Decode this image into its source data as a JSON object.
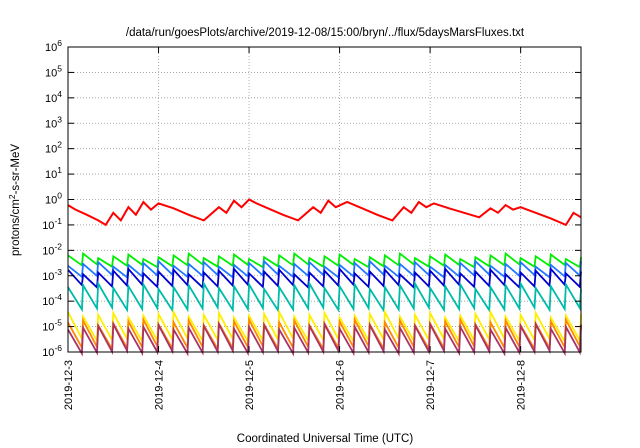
{
  "chart_data": {
    "type": "line",
    "title": "/data/run/goesPlots/archive/2019-12-08/15:00/bryn/../flux/5daysMarsFluxes.txt",
    "xlabel": "Coordinated Universal Time (UTC)",
    "ylabel": {
      "base": "protons/cm",
      "sup": "2",
      "rest": "-s-sr-MeV"
    },
    "x_ticks": [
      "2019-12-3",
      "2019-12-4",
      "2019-12-5",
      "2019-12-6",
      "2019-12-7",
      "2019-12-8"
    ],
    "xlim": [
      "2019-12-3",
      "2019-12-8 16:00"
    ],
    "yscale": "log",
    "ylim": [
      1e-06,
      1000000.0
    ],
    "y_ticks": [
      {
        "value": 1e-06,
        "base": "10",
        "exp": "-6"
      },
      {
        "value": 1e-05,
        "base": "10",
        "exp": "-5"
      },
      {
        "value": 0.0001,
        "base": "10",
        "exp": "-4"
      },
      {
        "value": 0.001,
        "base": "10",
        "exp": "-3"
      },
      {
        "value": 0.01,
        "base": "10",
        "exp": "-2"
      },
      {
        "value": 0.1,
        "base": "10",
        "exp": "-1"
      },
      {
        "value": 1,
        "base": "10",
        "exp": "0"
      },
      {
        "value": 10,
        "base": "10",
        "exp": "1"
      },
      {
        "value": 100,
        "base": "10",
        "exp": "2"
      },
      {
        "value": 1000,
        "base": "10",
        "exp": "3"
      },
      {
        "value": 10000,
        "base": "10",
        "exp": "4"
      },
      {
        "value": 100000,
        "base": "10",
        "exp": "5"
      },
      {
        "value": 1000000,
        "base": "10",
        "exp": "6"
      }
    ],
    "grid": true,
    "legend": "none",
    "series": [
      {
        "color": "#ff0000",
        "x": [
          "2019-12-3 00:00",
          "2019-12-3 02:00",
          "2019-12-3 05:00",
          "2019-12-3 08:00",
          "2019-12-3 10:00",
          "2019-12-3 12:00",
          "2019-12-3 14:00",
          "2019-12-3 16:00",
          "2019-12-3 18:00",
          "2019-12-3 20:00",
          "2019-12-3 22:00",
          "2019-12-4 00:00",
          "2019-12-4 04:00",
          "2019-12-4 08:00",
          "2019-12-4 12:00",
          "2019-12-4 16:00",
          "2019-12-4 18:00",
          "2019-12-4 20:00",
          "2019-12-4 22:00",
          "2019-12-5 00:00",
          "2019-12-5 02:00",
          "2019-12-5 05:00",
          "2019-12-5 09:00",
          "2019-12-5 13:00",
          "2019-12-5 17:00",
          "2019-12-5 19:00",
          "2019-12-5 21:00",
          "2019-12-5 23:00",
          "2019-12-6 02:00",
          "2019-12-6 06:00",
          "2019-12-6 10:00",
          "2019-12-6 14:00",
          "2019-12-6 17:00",
          "2019-12-6 19:00",
          "2019-12-6 21:00",
          "2019-12-6 23:00",
          "2019-12-7 01:00",
          "2019-12-7 05:00",
          "2019-12-7 09:00",
          "2019-12-7 13:00",
          "2019-12-7 16:00",
          "2019-12-7 18:00",
          "2019-12-7 20:00",
          "2019-12-7 22:00",
          "2019-12-8 00:00",
          "2019-12-8 04:00",
          "2019-12-8 08:00",
          "2019-12-8 12:00",
          "2019-12-8 14:00",
          "2019-12-8 16:00"
        ],
        "y": [
          0.6,
          0.4,
          0.25,
          0.15,
          0.1,
          0.3,
          0.15,
          0.5,
          0.25,
          0.8,
          0.4,
          0.7,
          0.45,
          0.25,
          0.15,
          0.5,
          0.3,
          0.9,
          0.5,
          1.0,
          0.7,
          0.45,
          0.25,
          0.15,
          0.5,
          0.3,
          0.9,
          0.5,
          0.8,
          0.45,
          0.25,
          0.15,
          0.5,
          0.3,
          0.8,
          0.5,
          0.7,
          0.45,
          0.3,
          0.2,
          0.45,
          0.3,
          0.6,
          0.4,
          0.5,
          0.3,
          0.18,
          0.1,
          0.3,
          0.2
        ]
      },
      {
        "color": "#00ee00",
        "pattern": "sawtooth",
        "period_hours": 4,
        "peak": 0.006,
        "trough": 0.0025
      },
      {
        "color": "#2277ff",
        "pattern": "sawtooth",
        "period_hours": 4,
        "peak": 0.003,
        "trough": 0.001
      },
      {
        "color": "#0000cc",
        "pattern": "sawtooth",
        "period_hours": 4,
        "peak": 0.0015,
        "trough": 0.0004
      },
      {
        "color": "#00bbaa",
        "pattern": "sawtooth",
        "period_hours": 4,
        "peak": 0.0004,
        "trough": 5e-05
      },
      {
        "color": "#ffee00",
        "pattern": "sawtooth",
        "period_hours": 4,
        "peak": 3e-05,
        "trough": 3e-06
      },
      {
        "color": "#ff8800",
        "pattern": "sawtooth",
        "period_hours": 4,
        "peak": 1.5e-05,
        "trough": 1.5e-06
      },
      {
        "color": "#aa3366",
        "pattern": "sawtooth",
        "period_hours": 4,
        "peak": 1e-05,
        "trough": 1e-06
      }
    ]
  }
}
